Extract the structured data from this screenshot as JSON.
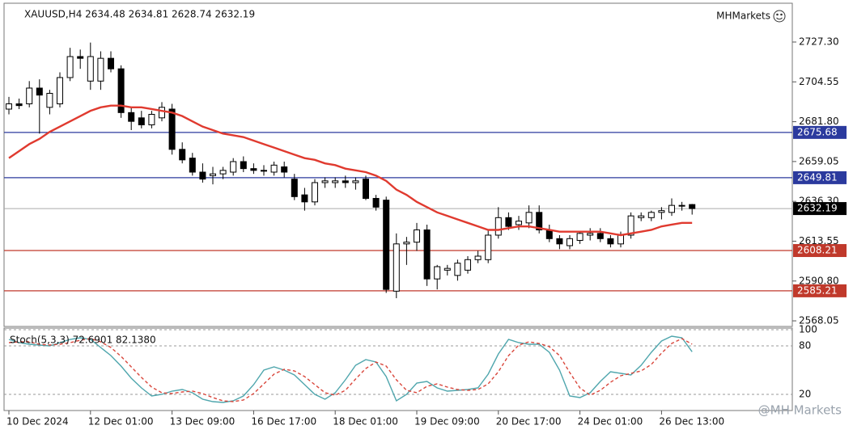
{
  "chart_data": [
    {
      "type": "candlestick",
      "title": "XAUUSD,H4  2634.48 2634.81 2628.74 2632.19",
      "annotations": [
        "MHMarkets",
        "@MH Markets"
      ],
      "categories": [
        "10 Dec 2024",
        null,
        null,
        null,
        null,
        null,
        null,
        null,
        "12 Dec 01:00",
        null,
        null,
        null,
        null,
        null,
        null,
        null,
        "13 Dec 09:00",
        null,
        null,
        null,
        null,
        null,
        null,
        null,
        "16 Dec 17:00",
        null,
        null,
        null,
        null,
        null,
        null,
        null,
        "18 Dec 01:00",
        null,
        null,
        null,
        null,
        null,
        null,
        null,
        "19 Dec 09:00",
        null,
        null,
        null,
        null,
        null,
        null,
        null,
        "20 Dec 17:00",
        null,
        null,
        null,
        null,
        null,
        null,
        null,
        "24 Dec 01:00",
        null,
        null,
        null,
        null,
        null,
        null,
        null,
        "26 Dec 13:00",
        null,
        null,
        null
      ],
      "open": [
        2689,
        2692,
        2692,
        2701,
        2690,
        2692,
        2707,
        2719,
        2705,
        2705,
        2718,
        2712,
        2687,
        2684,
        2680,
        2684,
        2689,
        2666,
        2661,
        2653,
        2651,
        2652,
        2653,
        2659,
        2655,
        2654,
        2653,
        2656,
        2649,
        2640,
        2636,
        2647,
        2647,
        2648,
        2647,
        2649,
        2638,
        2637,
        2585,
        2612,
        2613,
        2620,
        2592,
        2597,
        2594,
        2597,
        2603,
        2603,
        2617,
        2627,
        2623,
        2624,
        2630,
        2620,
        2615,
        2611,
        2614,
        2617,
        2618,
        2615,
        2612,
        2617,
        2627,
        2627,
        2630,
        2630,
        2634,
        2634.48
      ],
      "high": [
        2696,
        2695,
        2705,
        2706,
        2700,
        2710,
        2724,
        2723,
        2727,
        2722,
        2722,
        2714,
        2690,
        2688,
        2688,
        2693,
        2692,
        2670,
        2664,
        2658,
        2656,
        2656,
        2661,
        2662,
        2658,
        2657,
        2659,
        2659,
        2652,
        2644,
        2649,
        2650,
        2650,
        2651,
        2650,
        2651,
        2640,
        2639,
        2618,
        2616,
        2624,
        2623,
        2600,
        2600,
        2603,
        2605,
        2608,
        2620,
        2633,
        2630,
        2628,
        2634,
        2634,
        2623,
        2617,
        2617,
        2619,
        2621,
        2621,
        2617,
        2619,
        2630,
        2630,
        2631,
        2633,
        2638,
        2636,
        2634.81
      ],
      "low": [
        2686,
        2689,
        2690,
        2675,
        2686,
        2690,
        2705,
        2712,
        2700,
        2700,
        2710,
        2684,
        2677,
        2678,
        2678,
        2682,
        2663,
        2658,
        2651,
        2647,
        2646,
        2649,
        2651,
        2653,
        2652,
        2651,
        2651,
        2650,
        2637,
        2631,
        2634,
        2644,
        2644,
        2644,
        2643,
        2637,
        2631,
        2584,
        2581,
        2600,
        2608,
        2588,
        2586,
        2594,
        2591,
        2595,
        2601,
        2601,
        2615,
        2620,
        2620,
        2621,
        2618,
        2613,
        2609,
        2609,
        2612,
        2614,
        2613,
        2610,
        2610,
        2615,
        2625,
        2625,
        2626,
        2628,
        2631,
        2628.74
      ],
      "close": [
        2692,
        2691,
        2701,
        2697,
        2698,
        2707,
        2719,
        2718,
        2719,
        2718,
        2712,
        2687,
        2682,
        2680,
        2686,
        2690,
        2666,
        2660,
        2653,
        2649,
        2652,
        2654,
        2659,
        2655,
        2654,
        2654,
        2657,
        2653,
        2639,
        2636,
        2647,
        2648,
        2648,
        2647,
        2648,
        2638,
        2633,
        2586,
        2612,
        2613,
        2620,
        2592,
        2599,
        2598,
        2601,
        2603,
        2605,
        2617,
        2627,
        2622,
        2625,
        2630,
        2620,
        2615,
        2612,
        2615,
        2618,
        2618,
        2615,
        2612,
        2617,
        2628,
        2628,
        2630,
        2631,
        2634,
        2634,
        2632.19
      ],
      "up_color": "#ffffff",
      "down_color": "#000000",
      "series": [
        {
          "color": "#e03a2f",
          "values": [
            2661,
            2665,
            2669,
            2672,
            2676,
            2679,
            2682,
            2685,
            2688,
            2690,
            2691,
            2691,
            2690,
            2690,
            2689,
            2688,
            2687,
            2685,
            2682,
            2679,
            2677,
            2675,
            2674,
            2673,
            2671,
            2669,
            2667,
            2665,
            2663,
            2661,
            2660,
            2658,
            2657,
            2655,
            2654,
            2653,
            2651,
            2648,
            2643,
            2640,
            2636,
            2633,
            2630,
            2628,
            2626,
            2624,
            2622,
            2620,
            2620,
            2621,
            2622,
            2622,
            2621,
            2620,
            2619,
            2619,
            2619,
            2619,
            2619,
            2618,
            2617,
            2618,
            2619,
            2620,
            2622,
            2623,
            2624,
            2624
          ]
        }
      ],
      "levels": [
        {
          "value": 2675.68,
          "color": "#2b3a9e"
        },
        {
          "value": 2649.81,
          "color": "#2b3a9e"
        },
        {
          "value": 2608.21,
          "color": "#c0392b"
        },
        {
          "value": 2585.21,
          "color": "#c0392b"
        }
      ],
      "ylim": [
        2565.3,
        2749.0
      ],
      "yticks": [
        {
          "value": 2727.3,
          "label": "2727.30"
        },
        2704.55,
        {
          "value": 2681.8,
          "label": "2681.80"
        },
        2659.05,
        {
          "value": 2636.3,
          "label": "2636.30"
        },
        2613.55,
        {
          "value": 2590.8,
          "label": "2590.80"
        },
        2568.05
      ]
    },
    {
      "type": "line",
      "title": "Stoch(5,3,3) 72.6901 82.1380",
      "series": [
        {
          "color": "#4fa6ad",
          "values": [
            88,
            84,
            82,
            81,
            80,
            84,
            88,
            90,
            88,
            78,
            68,
            55,
            40,
            28,
            18,
            20,
            24,
            26,
            22,
            14,
            11,
            10,
            12,
            18,
            32,
            50,
            54,
            50,
            44,
            32,
            20,
            14,
            22,
            38,
            56,
            63,
            60,
            42,
            12,
            20,
            34,
            36,
            28,
            24,
            25,
            26,
            28,
            45,
            70,
            88,
            84,
            82,
            82,
            72,
            50,
            18,
            16,
            22,
            36,
            48,
            46,
            44,
            56,
            72,
            86,
            92,
            90,
            72.6901
          ]
        },
        {
          "color": "#d9463b",
          "dash": true,
          "values": [
            84,
            85,
            85,
            82,
            81,
            82,
            84,
            87,
            89,
            85,
            78,
            67,
            54,
            41,
            29,
            22,
            21,
            23,
            24,
            21,
            16,
            12,
            11,
            13,
            21,
            33,
            45,
            51,
            49,
            42,
            32,
            22,
            19,
            25,
            39,
            52,
            60,
            55,
            38,
            25,
            22,
            30,
            33,
            29,
            26,
            25,
            26,
            33,
            48,
            68,
            81,
            85,
            83,
            79,
            68,
            47,
            28,
            19,
            25,
            35,
            43,
            46,
            49,
            57,
            71,
            83,
            89,
            82.138
          ]
        }
      ],
      "ylim": [
        0,
        100
      ],
      "yticks": [
        100,
        80,
        20
      ],
      "grid": true
    }
  ]
}
